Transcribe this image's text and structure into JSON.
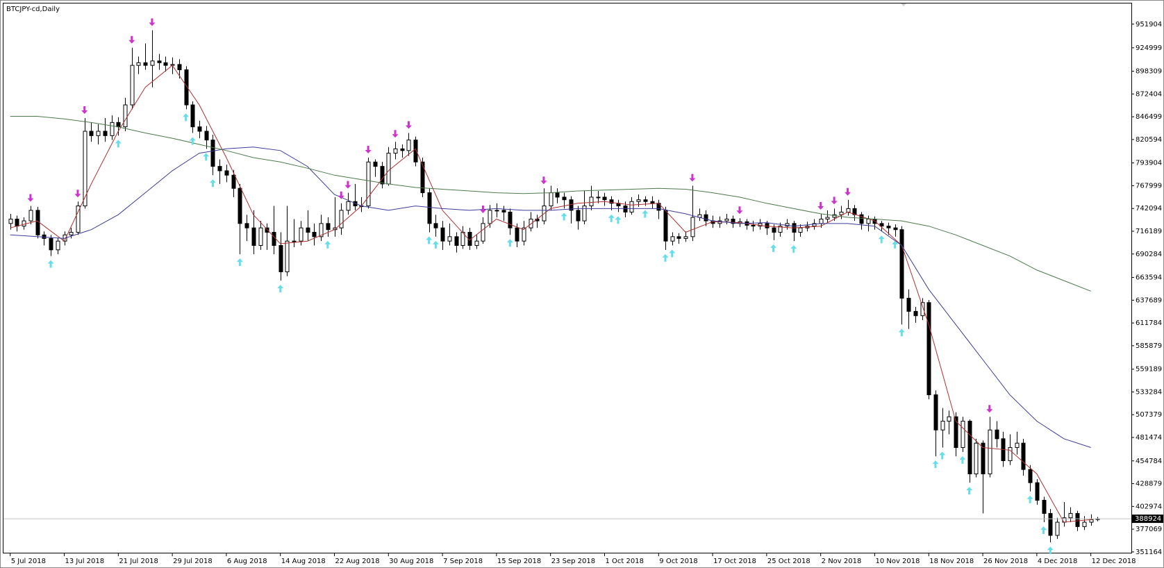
{
  "chart_data": {
    "type": "candlestick",
    "title": "BTCJPY-cd,Daily",
    "ylim": [
      349470,
      975434
    ],
    "yticks": [
      951904,
      924999,
      898309,
      872404,
      846499,
      820594,
      793904,
      767999,
      742094,
      716189,
      690284,
      663594,
      637689,
      611784,
      585879,
      559189,
      533284,
      507379,
      481474,
      454784,
      428879,
      402974,
      377069,
      351164
    ],
    "xlim": [
      -1,
      166
    ],
    "xticks": [
      {
        "value": 0,
        "label": "5 Jul 2018"
      },
      {
        "value": 8,
        "label": "13 Jul 2018"
      },
      {
        "value": 16,
        "label": "21 Jul 2018"
      },
      {
        "value": 24,
        "label": "29 Jul 2018"
      },
      {
        "value": 32,
        "label": "6 Aug 2018"
      },
      {
        "value": 40,
        "label": "14 Aug 2018"
      },
      {
        "value": 48,
        "label": "22 Aug 2018"
      },
      {
        "value": 56,
        "label": "30 Aug 2018"
      },
      {
        "value": 64,
        "label": "7 Sep 2018"
      },
      {
        "value": 72,
        "label": "15 Sep 2018"
      },
      {
        "value": 80,
        "label": "23 Sep 2018"
      },
      {
        "value": 88,
        "label": "1 Oct 2018"
      },
      {
        "value": 96,
        "label": "9 Oct 2018"
      },
      {
        "value": 104,
        "label": "17 Oct 2018"
      },
      {
        "value": 112,
        "label": "25 Oct 2018"
      },
      {
        "value": 120,
        "label": "2 Nov 2018"
      },
      {
        "value": 128,
        "label": "10 Nov 2018"
      },
      {
        "value": 136,
        "label": "18 Nov 2018"
      },
      {
        "value": 144,
        "label": "26 Nov 2018"
      },
      {
        "value": 152,
        "label": "4 Dec 2018"
      },
      {
        "value": 160,
        "label": "12 Dec 2018"
      }
    ],
    "current_price": 388924,
    "up_color": "#ffffff",
    "down_color": "#000000",
    "candles": [
      [
        725000,
        736000,
        718000,
        730000
      ],
      [
        730000,
        734000,
        716000,
        722000
      ],
      [
        722000,
        732000,
        718000,
        728000
      ],
      [
        728000,
        745000,
        724000,
        740000
      ],
      [
        740000,
        744000,
        708000,
        712000
      ],
      [
        712000,
        716000,
        700000,
        708000
      ],
      [
        708000,
        712000,
        688000,
        695000
      ],
      [
        695000,
        709000,
        690000,
        705000
      ],
      [
        705000,
        716000,
        700000,
        712000
      ],
      [
        712000,
        720000,
        708000,
        715000
      ],
      [
        715000,
        750000,
        712000,
        745000
      ],
      [
        745000,
        845000,
        742000,
        830000
      ],
      [
        830000,
        840000,
        818000,
        825000
      ],
      [
        825000,
        838000,
        815000,
        830000
      ],
      [
        830000,
        845000,
        818000,
        825000
      ],
      [
        825000,
        848000,
        820000,
        840000
      ],
      [
        840000,
        846000,
        825000,
        835000
      ],
      [
        835000,
        868000,
        830000,
        860000
      ],
      [
        860000,
        925000,
        855000,
        905000
      ],
      [
        905000,
        915000,
        895000,
        908000
      ],
      [
        908000,
        930000,
        900000,
        905000
      ],
      [
        905000,
        945000,
        880000,
        910000
      ],
      [
        910000,
        918000,
        900000,
        908000
      ],
      [
        908000,
        915000,
        898000,
        905000
      ],
      [
        905000,
        914000,
        895000,
        906000
      ],
      [
        906000,
        912000,
        890000,
        900000
      ],
      [
        900000,
        904000,
        855000,
        860000
      ],
      [
        860000,
        864000,
        828000,
        835000
      ],
      [
        835000,
        842000,
        822000,
        830000
      ],
      [
        830000,
        836000,
        810000,
        820000
      ],
      [
        820000,
        826000,
        780000,
        790000
      ],
      [
        790000,
        798000,
        770000,
        785000
      ],
      [
        785000,
        792000,
        772000,
        780000
      ],
      [
        780000,
        786000,
        755000,
        765000
      ],
      [
        765000,
        770000,
        690000,
        725000
      ],
      [
        725000,
        735000,
        705000,
        720000
      ],
      [
        720000,
        740000,
        690000,
        700000
      ],
      [
        700000,
        728000,
        695000,
        720000
      ],
      [
        720000,
        725000,
        695000,
        715000
      ],
      [
        715000,
        745000,
        690000,
        700000
      ],
      [
        700000,
        715000,
        660000,
        670000
      ],
      [
        670000,
        745000,
        665000,
        705000
      ],
      [
        705000,
        730000,
        698000,
        705000
      ],
      [
        705000,
        728000,
        700000,
        720000
      ],
      [
        720000,
        740000,
        705000,
        715000
      ],
      [
        715000,
        725000,
        700000,
        710000
      ],
      [
        710000,
        735000,
        705000,
        725000
      ],
      [
        725000,
        732000,
        710000,
        718000
      ],
      [
        718000,
        755000,
        710000,
        720000
      ],
      [
        720000,
        748000,
        712000,
        740000
      ],
      [
        740000,
        760000,
        735000,
        750000
      ],
      [
        750000,
        770000,
        740000,
        745000
      ],
      [
        745000,
        755000,
        738000,
        745000
      ],
      [
        745000,
        800000,
        742000,
        795000
      ],
      [
        795000,
        798000,
        778000,
        790000
      ],
      [
        790000,
        795000,
        765000,
        770000
      ],
      [
        770000,
        812000,
        768000,
        805000
      ],
      [
        805000,
        818000,
        798000,
        810000
      ],
      [
        810000,
        815000,
        800000,
        808000
      ],
      [
        808000,
        828000,
        802000,
        820000
      ],
      [
        820000,
        824000,
        790000,
        795000
      ],
      [
        795000,
        800000,
        755000,
        760000
      ],
      [
        760000,
        765000,
        715000,
        725000
      ],
      [
        725000,
        735000,
        710000,
        720000
      ],
      [
        720000,
        728000,
        695000,
        705000
      ],
      [
        705000,
        725000,
        700000,
        710000
      ],
      [
        710000,
        715000,
        692000,
        700000
      ],
      [
        700000,
        722000,
        696000,
        715000
      ],
      [
        715000,
        720000,
        695000,
        700000
      ],
      [
        700000,
        712000,
        696000,
        705000
      ],
      [
        705000,
        732000,
        702000,
        725000
      ],
      [
        725000,
        746000,
        720000,
        740000
      ],
      [
        740000,
        748000,
        732000,
        740000
      ],
      [
        740000,
        745000,
        728000,
        738000
      ],
      [
        738000,
        742000,
        712000,
        720000
      ],
      [
        720000,
        725000,
        698000,
        705000
      ],
      [
        705000,
        728000,
        700000,
        720000
      ],
      [
        720000,
        738000,
        716000,
        730000
      ],
      [
        730000,
        735000,
        720000,
        728000
      ],
      [
        728000,
        765000,
        724000,
        745000
      ],
      [
        745000,
        768000,
        740000,
        760000
      ],
      [
        760000,
        765000,
        748000,
        755000
      ],
      [
        755000,
        760000,
        742000,
        752000
      ],
      [
        752000,
        756000,
        725000,
        740000
      ],
      [
        740000,
        745000,
        718000,
        728000
      ],
      [
        728000,
        762000,
        724000,
        745000
      ],
      [
        745000,
        768000,
        740000,
        755000
      ],
      [
        755000,
        762000,
        748000,
        755000
      ],
      [
        755000,
        760000,
        745000,
        752000
      ],
      [
        752000,
        756000,
        740000,
        748000
      ],
      [
        748000,
        752000,
        738000,
        745000
      ],
      [
        745000,
        750000,
        732000,
        738000
      ],
      [
        738000,
        755000,
        735000,
        750000
      ],
      [
        750000,
        758000,
        744000,
        752000
      ],
      [
        752000,
        756000,
        745000,
        750000
      ],
      [
        750000,
        756000,
        742000,
        748000
      ],
      [
        748000,
        752000,
        730000,
        740000
      ],
      [
        740000,
        744000,
        695000,
        705000
      ],
      [
        705000,
        715000,
        700000,
        710000
      ],
      [
        710000,
        714000,
        702000,
        708000
      ],
      [
        708000,
        716000,
        704000,
        710000
      ],
      [
        710000,
        768000,
        705000,
        732000
      ],
      [
        732000,
        742000,
        728000,
        735000
      ],
      [
        735000,
        740000,
        722000,
        728000
      ],
      [
        728000,
        734000,
        720000,
        725000
      ],
      [
        725000,
        733000,
        720000,
        728000
      ],
      [
        728000,
        736000,
        724000,
        730000
      ],
      [
        730000,
        734000,
        720000,
        725000
      ],
      [
        725000,
        731000,
        721000,
        727000
      ],
      [
        727000,
        730000,
        718000,
        723000
      ],
      [
        723000,
        728000,
        716000,
        722000
      ],
      [
        722000,
        730000,
        718000,
        725000
      ],
      [
        725000,
        728000,
        712000,
        720000
      ],
      [
        720000,
        724000,
        706000,
        715000
      ],
      [
        715000,
        726000,
        710000,
        722000
      ],
      [
        722000,
        730000,
        718000,
        725000
      ],
      [
        725000,
        728000,
        705000,
        715000
      ],
      [
        715000,
        724000,
        710000,
        720000
      ],
      [
        720000,
        727000,
        716000,
        722000
      ],
      [
        722000,
        730000,
        718000,
        725000
      ],
      [
        725000,
        736000,
        720000,
        730000
      ],
      [
        730000,
        740000,
        726000,
        732000
      ],
      [
        732000,
        742000,
        728000,
        735000
      ],
      [
        735000,
        745000,
        730000,
        738000
      ],
      [
        738000,
        752000,
        734000,
        742000
      ],
      [
        742000,
        746000,
        728000,
        735000
      ],
      [
        735000,
        738000,
        718000,
        725000
      ],
      [
        725000,
        734000,
        716000,
        730000
      ],
      [
        730000,
        733000,
        718000,
        725000
      ],
      [
        725000,
        728000,
        716000,
        722000
      ],
      [
        722000,
        726000,
        712000,
        720000
      ],
      [
        720000,
        724000,
        710000,
        718000
      ],
      [
        718000,
        722000,
        610000,
        640000
      ],
      [
        640000,
        650000,
        605000,
        625000
      ],
      [
        625000,
        630000,
        612000,
        620000
      ],
      [
        620000,
        640000,
        615000,
        635000
      ],
      [
        635000,
        638000,
        525000,
        530000
      ],
      [
        530000,
        535000,
        460000,
        490000
      ],
      [
        490000,
        515000,
        470000,
        500000
      ],
      [
        500000,
        512000,
        485000,
        505000
      ],
      [
        505000,
        510000,
        460000,
        470000
      ],
      [
        470000,
        505000,
        465000,
        500000
      ],
      [
        500000,
        502000,
        430000,
        440000
      ],
      [
        440000,
        480000,
        436000,
        475000
      ],
      [
        475000,
        478000,
        395000,
        440000
      ],
      [
        440000,
        505000,
        436000,
        490000
      ],
      [
        490000,
        500000,
        470000,
        480000
      ],
      [
        480000,
        488000,
        448000,
        455000
      ],
      [
        455000,
        485000,
        450000,
        470000
      ],
      [
        470000,
        488000,
        462000,
        475000
      ],
      [
        475000,
        480000,
        438000,
        445000
      ],
      [
        445000,
        450000,
        420000,
        430000
      ],
      [
        430000,
        434000,
        405000,
        410000
      ],
      [
        410000,
        414000,
        385000,
        395000
      ],
      [
        395000,
        400000,
        362000,
        370000
      ],
      [
        370000,
        390000,
        366000,
        385000
      ],
      [
        385000,
        408000,
        380000,
        390000
      ],
      [
        390000,
        402000,
        385000,
        395000
      ],
      [
        395000,
        398000,
        375000,
        380000
      ],
      [
        380000,
        392000,
        376000,
        385000
      ],
      [
        385000,
        394000,
        381000,
        388000
      ],
      [
        388000,
        391000,
        386000,
        388924
      ]
    ],
    "moving_averages": {
      "x": [
        0,
        4,
        8,
        12,
        16,
        20,
        24,
        28,
        32,
        36,
        40,
        44,
        48,
        52,
        56,
        60,
        64,
        68,
        72,
        76,
        80,
        84,
        88,
        92,
        96,
        100,
        104,
        108,
        112,
        116,
        120,
        124,
        128,
        132,
        136,
        140,
        144,
        148,
        152,
        156,
        160
      ],
      "series": [
        {
          "color": "#b03030",
          "values": [
            720000,
            728000,
            705000,
            770000,
            830000,
            880000,
            905000,
            860000,
            800000,
            735000,
            702000,
            705000,
            718000,
            745000,
            785000,
            810000,
            740000,
            706000,
            730000,
            718000,
            742000,
            748000,
            750000,
            746000,
            748000,
            715000,
            727000,
            726000,
            722000,
            720000,
            722000,
            738000,
            728000,
            700000,
            610000,
            500000,
            470000,
            467000,
            440000,
            385000,
            388000
          ]
        },
        {
          "color": "#3c3c98",
          "values": [
            712000,
            710000,
            708000,
            718000,
            735000,
            760000,
            785000,
            805000,
            810000,
            812000,
            808000,
            790000,
            758000,
            745000,
            740000,
            745000,
            742000,
            740000,
            742000,
            740000,
            740000,
            742000,
            742000,
            742000,
            742000,
            736000,
            728000,
            725000,
            726000,
            722000,
            725000,
            725000,
            722000,
            700000,
            650000,
            610000,
            570000,
            530000,
            500000,
            480000,
            470000
          ]
        },
        {
          "color": "#4a7a4a",
          "values": [
            847000,
            847000,
            844000,
            840000,
            835000,
            828000,
            822000,
            815000,
            808000,
            800000,
            795000,
            788000,
            780000,
            775000,
            770000,
            766000,
            764000,
            762000,
            760000,
            759000,
            760000,
            762000,
            763000,
            764000,
            765000,
            764000,
            760000,
            755000,
            748000,
            742000,
            736000,
            732000,
            730000,
            728000,
            722000,
            712000,
            700000,
            688000,
            672000,
            660000,
            648000
          ]
        }
      ]
    },
    "upper_fractals": [
      3,
      10,
      11,
      18,
      21,
      49,
      50,
      53,
      57,
      59,
      70,
      79,
      101,
      108,
      120,
      122,
      124,
      145
    ],
    "lower_fractals": [
      6,
      16,
      26,
      27,
      29,
      30,
      34,
      40,
      47,
      62,
      63,
      74,
      82,
      89,
      90,
      94,
      97,
      98,
      113,
      116,
      129,
      131,
      132,
      137,
      138,
      141,
      142,
      151,
      153,
      154
    ],
    "upper_fractal_color": "#cc33cc",
    "lower_fractal_color": "#66dde8"
  }
}
